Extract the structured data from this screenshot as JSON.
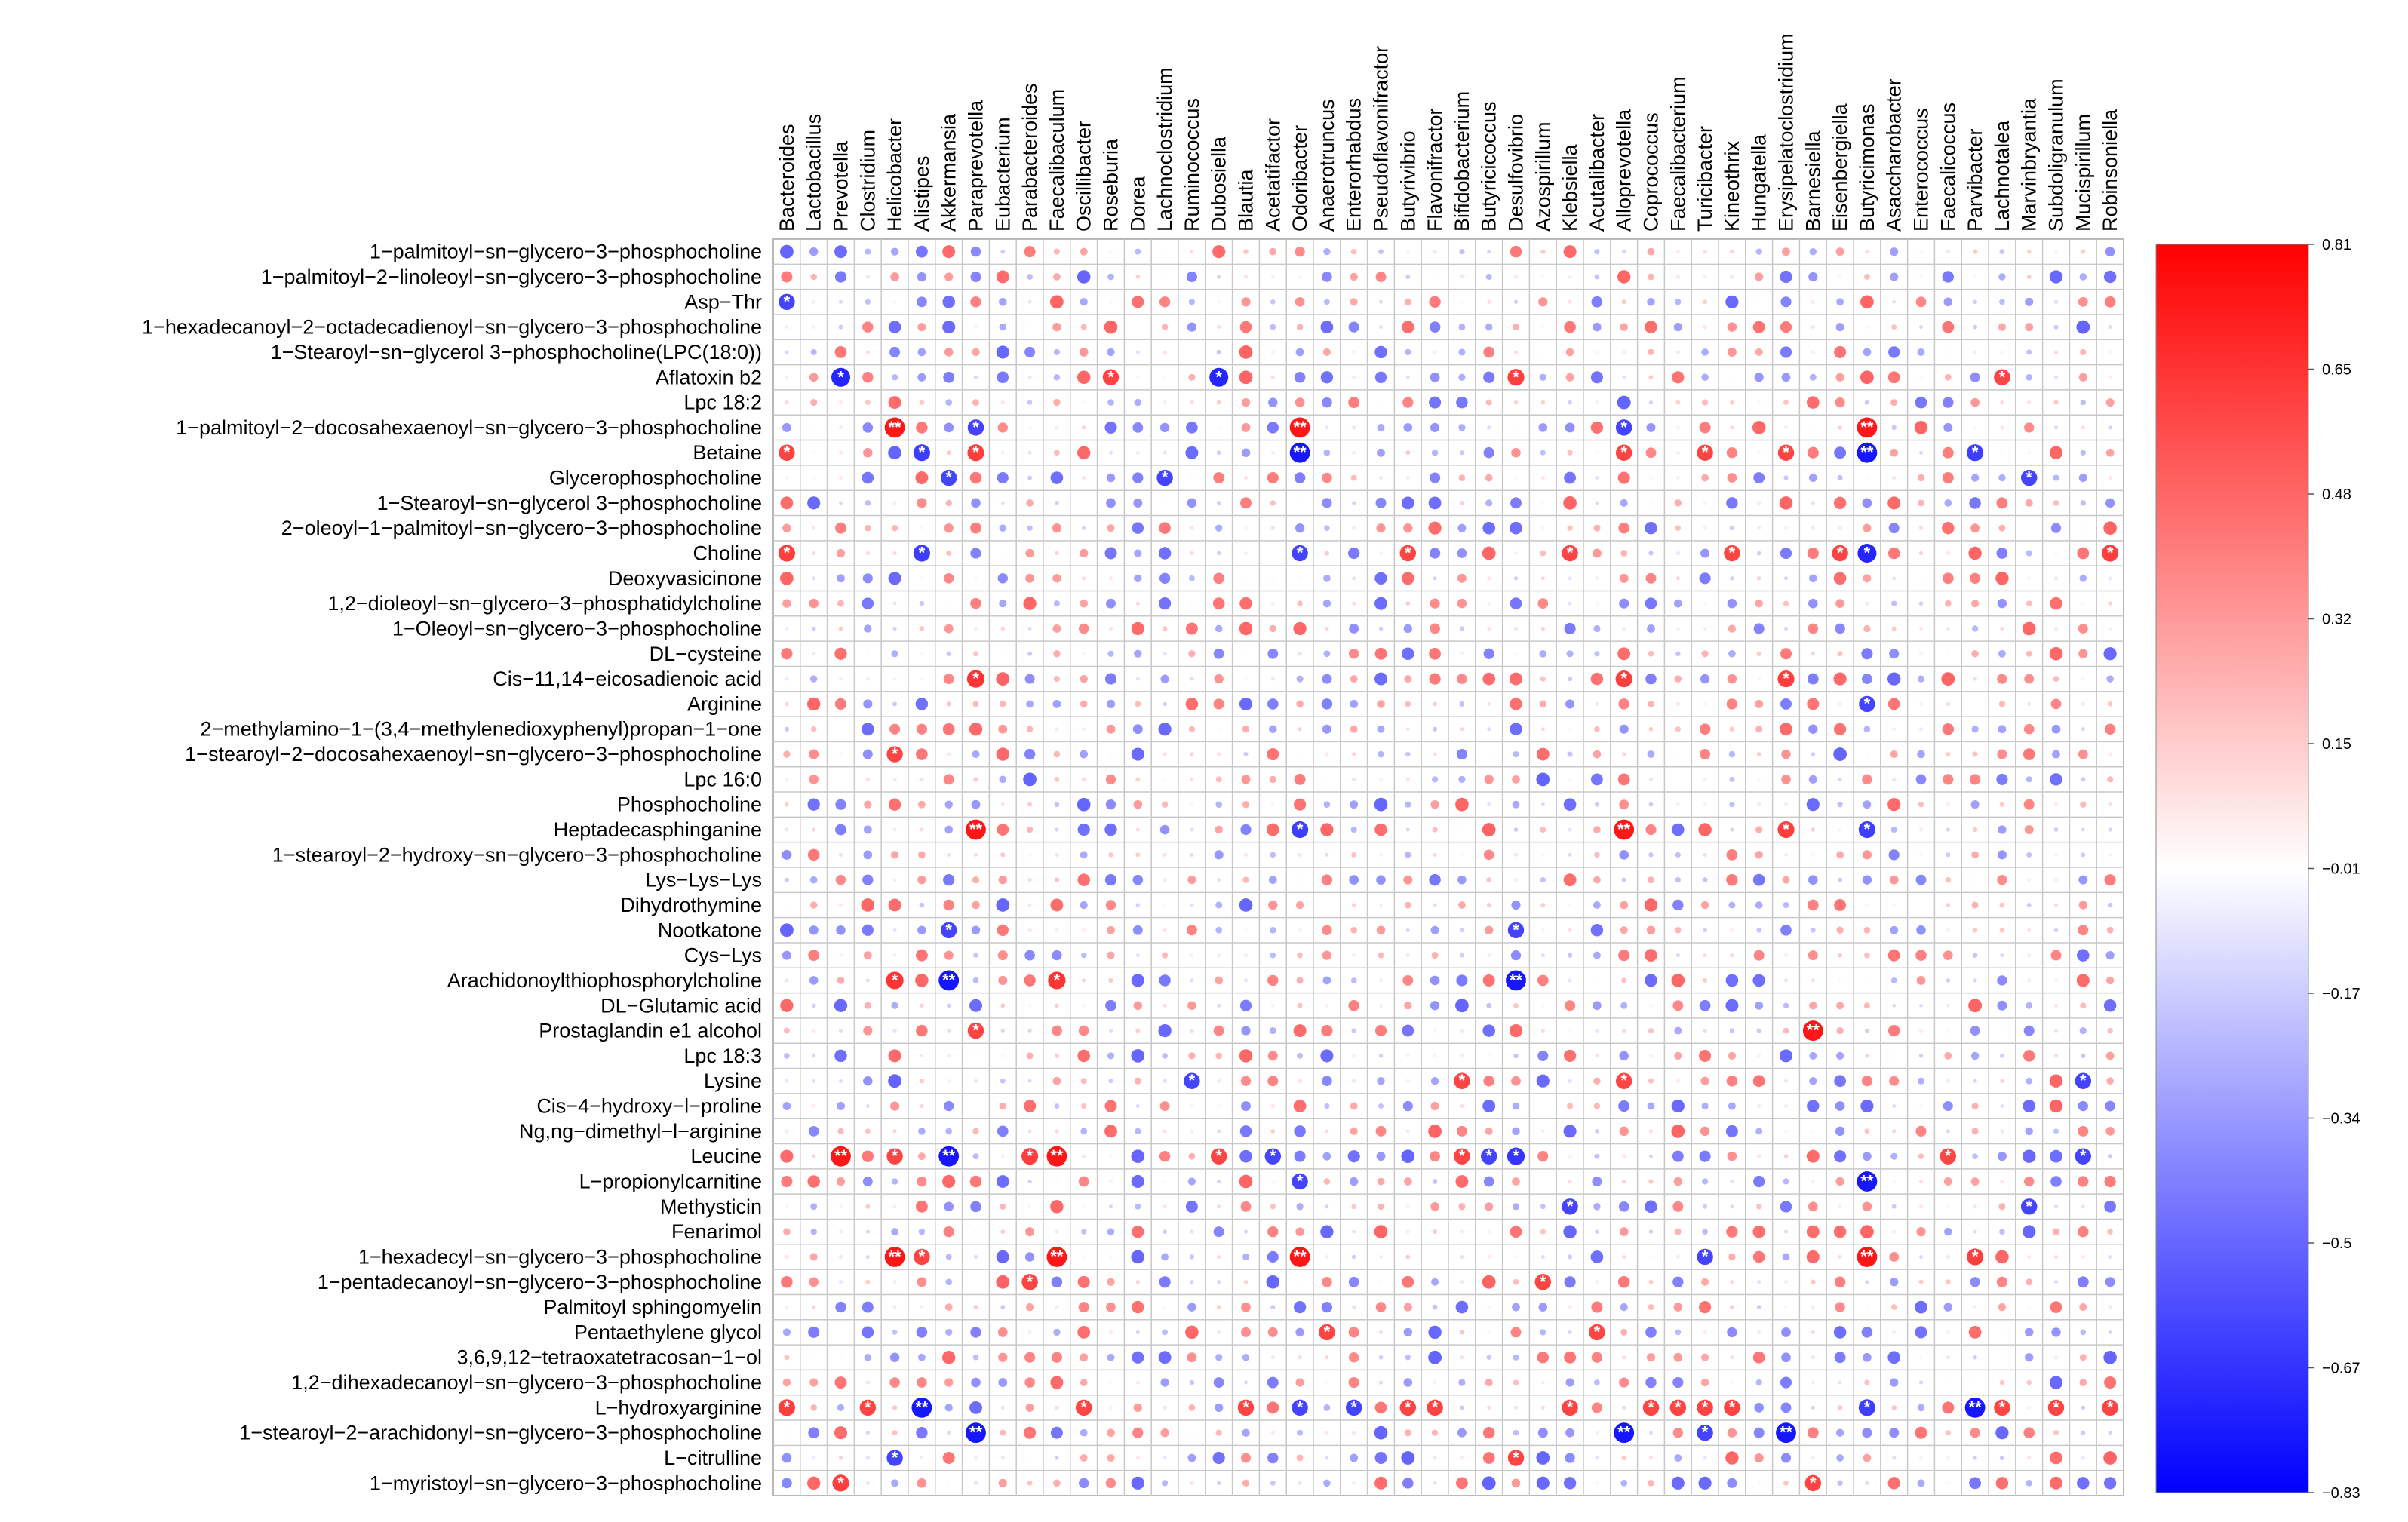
{
  "chart_data": {
    "type": "heatmap",
    "subtype": "correlation-dot-matrix",
    "colorbar": {
      "ticks": [
        0.81,
        0.65,
        0.48,
        0.32,
        0.15,
        -0.01,
        -0.17,
        -0.34,
        -0.5,
        -0.67,
        -0.83
      ],
      "range": [
        -0.83,
        0.81
      ],
      "colors": {
        "low": "#0000ff",
        "mid": "#ffffff",
        "high": "#ff0000"
      },
      "placement": "right"
    },
    "grid": true,
    "columns": [
      "Bacteroides",
      "Lactobacillus",
      "Prevotella",
      "Clostridium",
      "Helicobacter",
      "Alistipes",
      "Akkermansia",
      "Paraprevotella",
      "Eubacterium",
      "Parabacteroides",
      "Faecalibaculum",
      "Oscillibacter",
      "Roseburia",
      "Dorea",
      "Lachnoclostridium",
      "Ruminococcus",
      "Dubosiella",
      "Blautia",
      "Acetatifactor",
      "Odoribacter",
      "Anaerotruncus",
      "Enterorhabdus",
      "Pseudoflavonifractor",
      "Butyrivibrio",
      "Flavonifractor",
      "Bifidobacterium",
      "Butyricicoccus",
      "Desulfovibrio",
      "Azospirillum",
      "Klebsiella",
      "Acutalibacter",
      "Alloprevotella",
      "Coprococcus",
      "Faecalibacterium",
      "Turicibacter",
      "Kineothrix",
      "Hungatella",
      "Erysipelatoclostridium",
      "Barnesiella",
      "Eisenbergiella",
      "Butyricimonas",
      "Asaccharobacter",
      "Enterococcus",
      "Faecalicoccus",
      "Parvibacter",
      "Lachnotalea",
      "Marvinbryantia",
      "Subdoligranulum",
      "Mucispirillum",
      "Robinsoniella"
    ],
    "rows": [
      "1−palmitoyl−sn−glycero−3−phosphocholine",
      "1−palmitoyl−2−linoleoyl−sn−glycero−3−phosphocholine",
      "Asp−Thr",
      "1−hexadecanoyl−2−octadecadienoyl−sn−glycero−3−phosphocholine",
      "1−Stearoyl−sn−glycerol 3−phosphocholine(LPC(18:0))",
      "Aflatoxin b2",
      "Lpc 18:2",
      "1−palmitoyl−2−docosahexaenoyl−sn−glycero−3−phosphocholine",
      "Betaine",
      "Glycerophosphocholine",
      "1−Stearoyl−sn−glycerol 3−phosphocholine",
      "2−oleoyl−1−palmitoyl−sn−glycero−3−phosphocholine",
      "Choline",
      "Deoxyvasicinone",
      "1,2−dioleoyl−sn−glycero−3−phosphatidylcholine",
      "1−Oleoyl−sn−glycero−3−phosphocholine",
      "DL−cysteine",
      "Cis−11,14−eicosadienoic acid",
      "Arginine",
      "2−methylamino−1−(3,4−methylenedioxyphenyl)propan−1−one",
      "1−stearoyl−2−docosahexaenoyl−sn−glycero−3−phosphocholine",
      "Lpc 16:0",
      "Phosphocholine",
      "Heptadecasphinganine",
      "1−stearoyl−2−hydroxy−sn−glycero−3−phosphocholine",
      "Lys−Lys−Lys",
      "Dihydrothymine",
      "Nootkatone",
      "Cys−Lys",
      "Arachidonoylthiophosphorylcholine",
      "DL−Glutamic acid",
      "Prostaglandin e1 alcohol",
      "Lpc 18:3",
      "Lysine",
      "Cis−4−hydroxy−l−proline",
      "Ng,ng−dimethyl−l−arginine",
      "Leucine",
      "L−propionylcarnitine",
      "Methysticin",
      "Fenarimol",
      "1−hexadecyl−sn−glycero−3−phosphocholine",
      "1−pentadecanoyl−sn−glycero−3−phosphocholine",
      "Palmitoyl sphingomyelin",
      "Pentaethylene glycol",
      "3,6,9,12−tetraoxatetracosan−1−ol",
      "1,2−dihexadecanoyl−sn−glycero−3−phosphocholine",
      "L−hydroxyarginine",
      "1−stearoyl−2−arachidonyl−sn−glycero−3−phosphocholine",
      "L−citrulline",
      "1−myristoyl−sn−glycero−3−phosphocholine"
    ],
    "significant": [
      {
        "row": 2,
        "col": 0,
        "sig": "*",
        "value": -0.6
      },
      {
        "row": 5,
        "col": 2,
        "sig": "*",
        "value": -0.7
      },
      {
        "row": 5,
        "col": 12,
        "sig": "*",
        "value": 0.6
      },
      {
        "row": 5,
        "col": 16,
        "sig": "*",
        "value": -0.7
      },
      {
        "row": 5,
        "col": 27,
        "sig": "*",
        "value": 0.62
      },
      {
        "row": 5,
        "col": 45,
        "sig": "*",
        "value": 0.6
      },
      {
        "row": 7,
        "col": 4,
        "sig": "**",
        "value": 0.75
      },
      {
        "row": 7,
        "col": 7,
        "sig": "*",
        "value": -0.6
      },
      {
        "row": 7,
        "col": 19,
        "sig": "**",
        "value": 0.75
      },
      {
        "row": 7,
        "col": 31,
        "sig": "*",
        "value": -0.6
      },
      {
        "row": 7,
        "col": 40,
        "sig": "**",
        "value": 0.75
      },
      {
        "row": 8,
        "col": 0,
        "sig": "*",
        "value": 0.6
      },
      {
        "row": 8,
        "col": 5,
        "sig": "*",
        "value": -0.62
      },
      {
        "row": 8,
        "col": 7,
        "sig": "*",
        "value": 0.62
      },
      {
        "row": 8,
        "col": 19,
        "sig": "**",
        "value": -0.75
      },
      {
        "row": 8,
        "col": 31,
        "sig": "*",
        "value": 0.6
      },
      {
        "row": 8,
        "col": 34,
        "sig": "*",
        "value": 0.6
      },
      {
        "row": 8,
        "col": 37,
        "sig": "*",
        "value": 0.6
      },
      {
        "row": 8,
        "col": 40,
        "sig": "**",
        "value": -0.75
      },
      {
        "row": 8,
        "col": 44,
        "sig": "*",
        "value": -0.62
      },
      {
        "row": 9,
        "col": 6,
        "sig": "*",
        "value": -0.6
      },
      {
        "row": 9,
        "col": 14,
        "sig": "*",
        "value": -0.6
      },
      {
        "row": 9,
        "col": 46,
        "sig": "*",
        "value": -0.6
      },
      {
        "row": 12,
        "col": 0,
        "sig": "*",
        "value": 0.62
      },
      {
        "row": 12,
        "col": 5,
        "sig": "*",
        "value": -0.62
      },
      {
        "row": 12,
        "col": 19,
        "sig": "*",
        "value": -0.6
      },
      {
        "row": 12,
        "col": 23,
        "sig": "*",
        "value": 0.6
      },
      {
        "row": 12,
        "col": 29,
        "sig": "*",
        "value": 0.6
      },
      {
        "row": 12,
        "col": 35,
        "sig": "*",
        "value": 0.6
      },
      {
        "row": 12,
        "col": 39,
        "sig": "*",
        "value": 0.6
      },
      {
        "row": 12,
        "col": 40,
        "sig": "*",
        "value": -0.7
      },
      {
        "row": 12,
        "col": 49,
        "sig": "*",
        "value": 0.62
      },
      {
        "row": 17,
        "col": 7,
        "sig": "*",
        "value": 0.65
      },
      {
        "row": 17,
        "col": 31,
        "sig": "*",
        "value": 0.62
      },
      {
        "row": 17,
        "col": 37,
        "sig": "*",
        "value": 0.62
      },
      {
        "row": 18,
        "col": 40,
        "sig": "*",
        "value": -0.6
      },
      {
        "row": 20,
        "col": 4,
        "sig": "*",
        "value": 0.6
      },
      {
        "row": 23,
        "col": 7,
        "sig": "**",
        "value": 0.75
      },
      {
        "row": 23,
        "col": 19,
        "sig": "*",
        "value": -0.62
      },
      {
        "row": 23,
        "col": 31,
        "sig": "**",
        "value": 0.75
      },
      {
        "row": 23,
        "col": 37,
        "sig": "*",
        "value": 0.62
      },
      {
        "row": 23,
        "col": 40,
        "sig": "*",
        "value": -0.62
      },
      {
        "row": 27,
        "col": 6,
        "sig": "*",
        "value": -0.6
      },
      {
        "row": 27,
        "col": 27,
        "sig": "*",
        "value": -0.6
      },
      {
        "row": 29,
        "col": 4,
        "sig": "*",
        "value": 0.65
      },
      {
        "row": 29,
        "col": 6,
        "sig": "**",
        "value": -0.75
      },
      {
        "row": 29,
        "col": 10,
        "sig": "*",
        "value": 0.65
      },
      {
        "row": 29,
        "col": 27,
        "sig": "**",
        "value": -0.75
      },
      {
        "row": 31,
        "col": 7,
        "sig": "*",
        "value": 0.6
      },
      {
        "row": 31,
        "col": 38,
        "sig": "**",
        "value": 0.75
      },
      {
        "row": 33,
        "col": 15,
        "sig": "*",
        "value": -0.6
      },
      {
        "row": 33,
        "col": 25,
        "sig": "*",
        "value": 0.6
      },
      {
        "row": 33,
        "col": 31,
        "sig": "*",
        "value": 0.6
      },
      {
        "row": 33,
        "col": 48,
        "sig": "*",
        "value": -0.6
      },
      {
        "row": 36,
        "col": 2,
        "sig": "**",
        "value": 0.75
      },
      {
        "row": 36,
        "col": 4,
        "sig": "*",
        "value": 0.6
      },
      {
        "row": 36,
        "col": 6,
        "sig": "**",
        "value": -0.75
      },
      {
        "row": 36,
        "col": 9,
        "sig": "*",
        "value": 0.62
      },
      {
        "row": 36,
        "col": 10,
        "sig": "**",
        "value": 0.75
      },
      {
        "row": 36,
        "col": 16,
        "sig": "*",
        "value": 0.6
      },
      {
        "row": 36,
        "col": 18,
        "sig": "*",
        "value": -0.6
      },
      {
        "row": 36,
        "col": 25,
        "sig": "*",
        "value": 0.6
      },
      {
        "row": 36,
        "col": 26,
        "sig": "*",
        "value": -0.6
      },
      {
        "row": 36,
        "col": 27,
        "sig": "*",
        "value": -0.65
      },
      {
        "row": 36,
        "col": 43,
        "sig": "*",
        "value": 0.6
      },
      {
        "row": 36,
        "col": 48,
        "sig": "*",
        "value": -0.6
      },
      {
        "row": 37,
        "col": 19,
        "sig": "*",
        "value": -0.6
      },
      {
        "row": 37,
        "col": 40,
        "sig": "**",
        "value": -0.75
      },
      {
        "row": 38,
        "col": 29,
        "sig": "*",
        "value": -0.6
      },
      {
        "row": 38,
        "col": 46,
        "sig": "*",
        "value": -0.6
      },
      {
        "row": 40,
        "col": 4,
        "sig": "**",
        "value": 0.75
      },
      {
        "row": 40,
        "col": 5,
        "sig": "*",
        "value": 0.6
      },
      {
        "row": 40,
        "col": 10,
        "sig": "**",
        "value": 0.75
      },
      {
        "row": 40,
        "col": 19,
        "sig": "**",
        "value": 0.75
      },
      {
        "row": 40,
        "col": 34,
        "sig": "*",
        "value": -0.6
      },
      {
        "row": 40,
        "col": 40,
        "sig": "**",
        "value": 0.75
      },
      {
        "row": 40,
        "col": 44,
        "sig": "*",
        "value": 0.62
      },
      {
        "row": 41,
        "col": 9,
        "sig": "*",
        "value": 0.6
      },
      {
        "row": 41,
        "col": 28,
        "sig": "*",
        "value": 0.6
      },
      {
        "row": 43,
        "col": 20,
        "sig": "*",
        "value": 0.6
      },
      {
        "row": 43,
        "col": 30,
        "sig": "*",
        "value": 0.6
      },
      {
        "row": 46,
        "col": 0,
        "sig": "*",
        "value": 0.62
      },
      {
        "row": 46,
        "col": 3,
        "sig": "*",
        "value": 0.6
      },
      {
        "row": 46,
        "col": 5,
        "sig": "**",
        "value": -0.75
      },
      {
        "row": 46,
        "col": 11,
        "sig": "*",
        "value": 0.6
      },
      {
        "row": 46,
        "col": 17,
        "sig": "*",
        "value": 0.6
      },
      {
        "row": 46,
        "col": 19,
        "sig": "*",
        "value": -0.6
      },
      {
        "row": 46,
        "col": 21,
        "sig": "*",
        "value": -0.6
      },
      {
        "row": 46,
        "col": 23,
        "sig": "*",
        "value": 0.6
      },
      {
        "row": 46,
        "col": 24,
        "sig": "*",
        "value": 0.6
      },
      {
        "row": 46,
        "col": 29,
        "sig": "*",
        "value": 0.6
      },
      {
        "row": 46,
        "col": 32,
        "sig": "*",
        "value": 0.6
      },
      {
        "row": 46,
        "col": 33,
        "sig": "*",
        "value": 0.6
      },
      {
        "row": 46,
        "col": 34,
        "sig": "*",
        "value": 0.6
      },
      {
        "row": 46,
        "col": 35,
        "sig": "*",
        "value": 0.6
      },
      {
        "row": 46,
        "col": 40,
        "sig": "*",
        "value": -0.62
      },
      {
        "row": 46,
        "col": 44,
        "sig": "**",
        "value": -0.75
      },
      {
        "row": 46,
        "col": 45,
        "sig": "*",
        "value": 0.6
      },
      {
        "row": 46,
        "col": 47,
        "sig": "*",
        "value": 0.6
      },
      {
        "row": 46,
        "col": 49,
        "sig": "*",
        "value": 0.6
      },
      {
        "row": 47,
        "col": 7,
        "sig": "**",
        "value": -0.75
      },
      {
        "row": 47,
        "col": 31,
        "sig": "**",
        "value": -0.75
      },
      {
        "row": 47,
        "col": 34,
        "sig": "*",
        "value": -0.6
      },
      {
        "row": 47,
        "col": 37,
        "sig": "**",
        "value": -0.75
      },
      {
        "row": 48,
        "col": 4,
        "sig": "*",
        "value": -0.6
      },
      {
        "row": 48,
        "col": 27,
        "sig": "*",
        "value": 0.6
      },
      {
        "row": 49,
        "col": 2,
        "sig": "*",
        "value": 0.62
      },
      {
        "row": 49,
        "col": 38,
        "sig": "*",
        "value": 0.6
      }
    ]
  }
}
